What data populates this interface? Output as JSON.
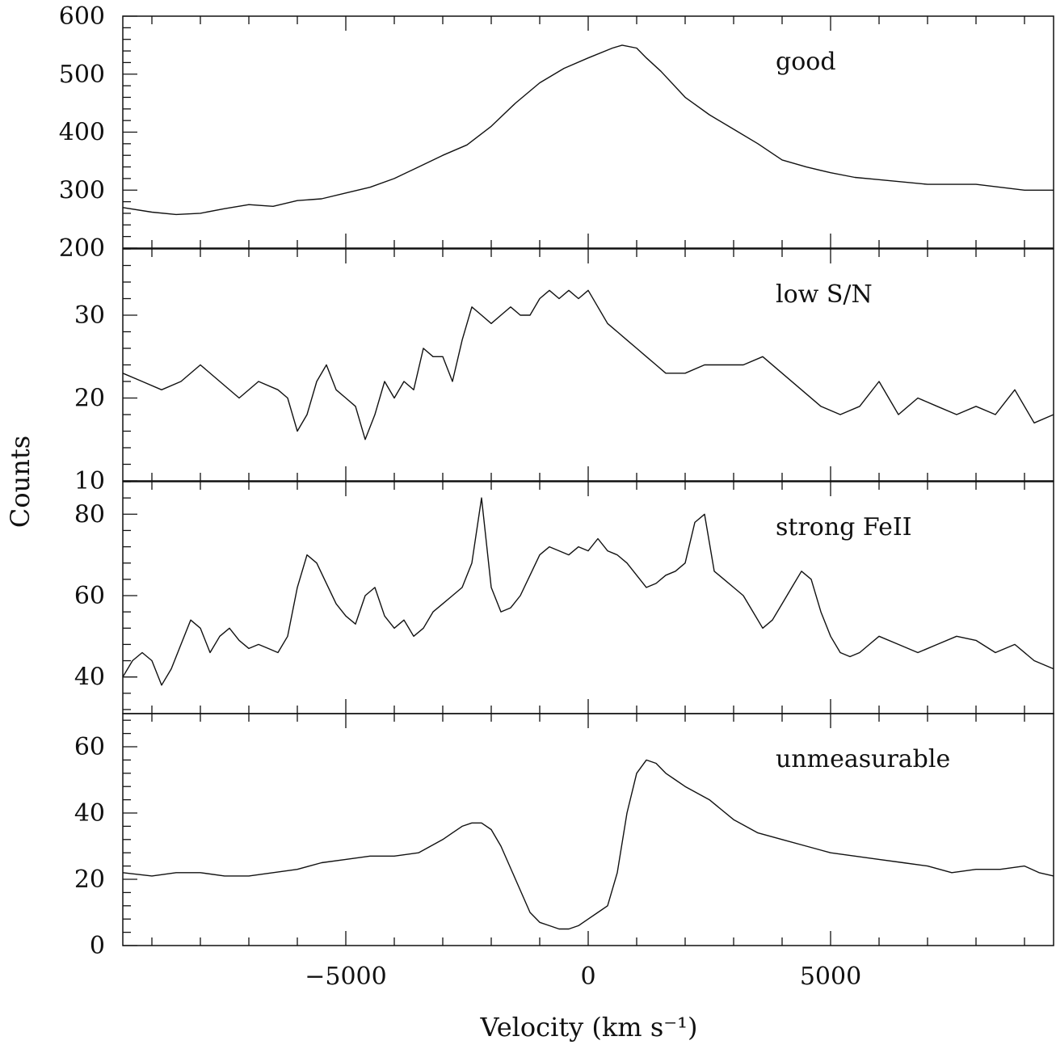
{
  "chart_data": {
    "type": "line",
    "xlabel": "Velocity (km s⁻¹)",
    "ylabel": "Counts",
    "xlim": [
      -9600,
      9600
    ],
    "xticks": [
      -5000,
      0,
      5000
    ],
    "grid": false,
    "panels": [
      {
        "label": "good",
        "ylim": [
          200,
          600
        ],
        "yticks": [
          200,
          300,
          400,
          500,
          600
        ],
        "series": {
          "x": [
            -9600,
            -9000,
            -8500,
            -8000,
            -7500,
            -7000,
            -6500,
            -6000,
            -5500,
            -5000,
            -4500,
            -4000,
            -3500,
            -3000,
            -2500,
            -2000,
            -1500,
            -1000,
            -500,
            0,
            500,
            700,
            1000,
            1200,
            1500,
            2000,
            2500,
            3000,
            3500,
            4000,
            4500,
            5000,
            5500,
            6000,
            7000,
            8000,
            9000,
            9600
          ],
          "y": [
            270,
            262,
            258,
            260,
            268,
            275,
            272,
            282,
            285,
            295,
            305,
            320,
            340,
            360,
            378,
            410,
            450,
            485,
            510,
            528,
            545,
            550,
            545,
            528,
            505,
            460,
            430,
            405,
            380,
            352,
            340,
            330,
            322,
            318,
            310,
            310,
            300,
            300
          ]
        }
      },
      {
        "label": "low S/N",
        "ylim": [
          10,
          38
        ],
        "yticks": [
          10,
          20,
          30
        ],
        "series": {
          "x": [
            -9600,
            -9200,
            -8800,
            -8400,
            -8000,
            -7600,
            -7200,
            -6800,
            -6400,
            -6200,
            -6000,
            -5800,
            -5600,
            -5400,
            -5200,
            -5000,
            -4800,
            -4600,
            -4400,
            -4200,
            -4000,
            -3800,
            -3600,
            -3400,
            -3200,
            -3000,
            -2800,
            -2600,
            -2400,
            -2200,
            -2000,
            -1800,
            -1600,
            -1400,
            -1200,
            -1000,
            -800,
            -600,
            -400,
            -200,
            0,
            200,
            400,
            600,
            800,
            1000,
            1200,
            1400,
            1600,
            1800,
            2000,
            2400,
            2800,
            3200,
            3600,
            4000,
            4400,
            4800,
            5200,
            5600,
            6000,
            6400,
            6800,
            7200,
            7600,
            8000,
            8400,
            8800,
            9200,
            9600
          ],
          "y": [
            23,
            22,
            21,
            22,
            24,
            22,
            20,
            22,
            21,
            20,
            16,
            18,
            22,
            24,
            21,
            20,
            19,
            15,
            18,
            22,
            20,
            22,
            21,
            26,
            25,
            25,
            22,
            27,
            31,
            30,
            29,
            30,
            31,
            30,
            30,
            32,
            33,
            32,
            33,
            32,
            33,
            31,
            29,
            28,
            27,
            26,
            25,
            24,
            23,
            23,
            23,
            24,
            24,
            24,
            25,
            23,
            21,
            19,
            18,
            19,
            22,
            18,
            20,
            19,
            18,
            19,
            18,
            21,
            17,
            18
          ]
        }
      },
      {
        "label": "strong FeII",
        "ylim": [
          31,
          88
        ],
        "yticks": [
          40,
          60,
          80
        ],
        "series": {
          "x": [
            -9600,
            -9400,
            -9200,
            -9000,
            -8800,
            -8600,
            -8400,
            -8200,
            -8000,
            -7800,
            -7600,
            -7400,
            -7200,
            -7000,
            -6800,
            -6600,
            -6400,
            -6200,
            -6000,
            -5800,
            -5600,
            -5400,
            -5200,
            -5000,
            -4800,
            -4600,
            -4400,
            -4200,
            -4000,
            -3800,
            -3600,
            -3400,
            -3200,
            -3000,
            -2800,
            -2600,
            -2400,
            -2200,
            -2000,
            -1800,
            -1600,
            -1400,
            -1200,
            -1000,
            -800,
            -600,
            -400,
            -200,
            0,
            200,
            400,
            600,
            800,
            1000,
            1200,
            1400,
            1600,
            1800,
            2000,
            2200,
            2400,
            2600,
            2800,
            3000,
            3200,
            3400,
            3600,
            3800,
            4000,
            4200,
            4400,
            4600,
            4800,
            5000,
            5200,
            5400,
            5600,
            5800,
            6000,
            6400,
            6800,
            7200,
            7600,
            8000,
            8400,
            8800,
            9200,
            9600
          ],
          "y": [
            40,
            44,
            46,
            44,
            38,
            42,
            48,
            54,
            52,
            46,
            50,
            52,
            49,
            47,
            48,
            47,
            46,
            50,
            62,
            70,
            68,
            63,
            58,
            55,
            53,
            60,
            62,
            55,
            52,
            54,
            50,
            52,
            56,
            58,
            60,
            62,
            68,
            84,
            62,
            56,
            57,
            60,
            65,
            70,
            72,
            71,
            70,
            72,
            71,
            74,
            71,
            70,
            68,
            65,
            62,
            63,
            65,
            66,
            68,
            78,
            80,
            66,
            64,
            62,
            60,
            56,
            52,
            54,
            58,
            62,
            66,
            64,
            56,
            50,
            46,
            45,
            46,
            48,
            50,
            48,
            46,
            48,
            50,
            49,
            46,
            48,
            44,
            42
          ]
        }
      },
      {
        "label": "unmeasurable",
        "ylim": [
          0,
          70
        ],
        "yticks": [
          0,
          20,
          40,
          60
        ],
        "series": {
          "x": [
            -9600,
            -9000,
            -8500,
            -8000,
            -7500,
            -7000,
            -6500,
            -6000,
            -5500,
            -5000,
            -4500,
            -4000,
            -3500,
            -3000,
            -2800,
            -2600,
            -2400,
            -2200,
            -2000,
            -1800,
            -1500,
            -1200,
            -1000,
            -800,
            -600,
            -400,
            -200,
            0,
            200,
            400,
            600,
            800,
            1000,
            1200,
            1400,
            1600,
            1800,
            2000,
            2500,
            3000,
            3500,
            4000,
            4500,
            5000,
            5500,
            6000,
            6500,
            7000,
            7500,
            8000,
            8500,
            9000,
            9300,
            9600
          ],
          "y": [
            22,
            21,
            22,
            22,
            21,
            21,
            22,
            23,
            25,
            26,
            27,
            27,
            28,
            32,
            34,
            36,
            37,
            37,
            35,
            30,
            20,
            10,
            7,
            6,
            5,
            5,
            6,
            8,
            10,
            12,
            22,
            40,
            52,
            56,
            55,
            52,
            50,
            48,
            44,
            38,
            34,
            32,
            30,
            28,
            27,
            26,
            25,
            24,
            22,
            23,
            23,
            24,
            22,
            21
          ]
        }
      }
    ]
  }
}
